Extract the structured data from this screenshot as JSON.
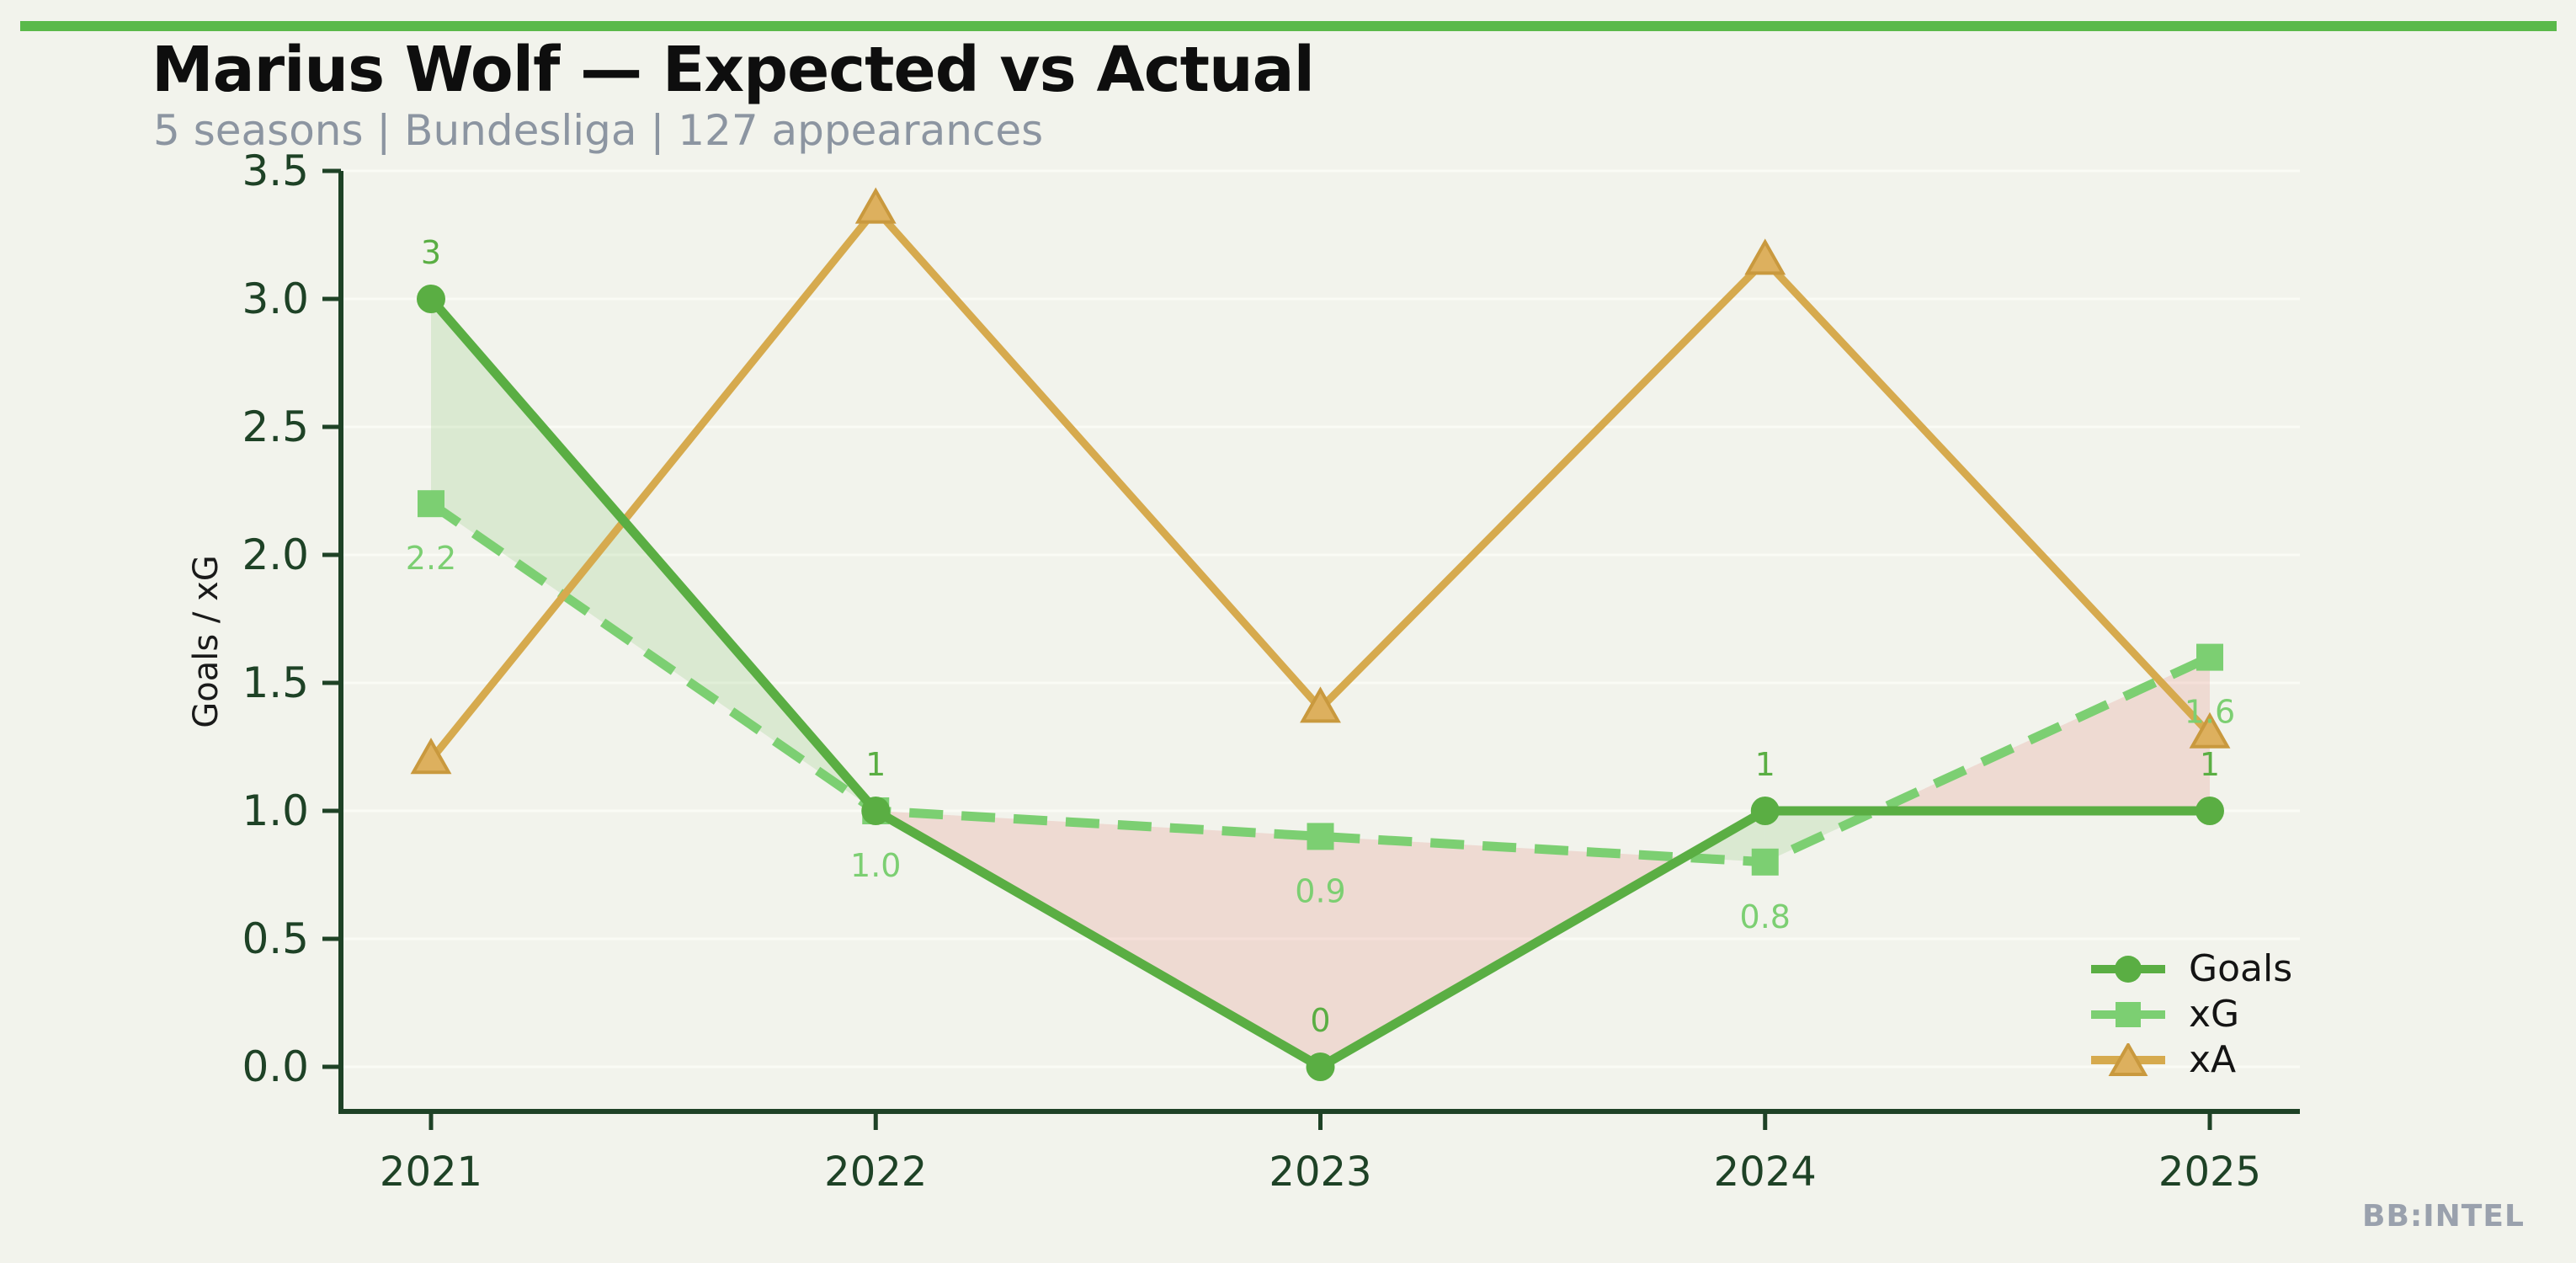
{
  "page": {
    "background": "#f2f3ec",
    "accent_bar_color": "#5ab94a",
    "watermark": "BB:INTEL",
    "watermark_color": "#9aa1ad"
  },
  "header": {
    "title": "Marius Wolf — Expected vs Actual",
    "subtitle": "5 seasons | Bundesliga | 127 appearances",
    "title_color": "#0e0e0e",
    "subtitle_color": "#8c95a1"
  },
  "chart_data": {
    "type": "line",
    "title": "Marius Wolf — Expected vs Actual",
    "x": [
      2021,
      2022,
      2023,
      2024,
      2025
    ],
    "xtick_labels": [
      "2021",
      "2022",
      "2023",
      "2024",
      "2025"
    ],
    "series": [
      {
        "name": "Goals",
        "values": [
          3,
          1,
          0,
          1,
          1
        ],
        "point_labels": [
          "3",
          "1",
          "0",
          "1",
          "1"
        ],
        "color": "#5aae43",
        "marker": "circle",
        "line_style": "solid"
      },
      {
        "name": "xG",
        "values": [
          2.2,
          1.0,
          0.9,
          0.8,
          1.6
        ],
        "point_labels": [
          "2.2",
          "1.0",
          "0.9",
          "0.8",
          "1.6"
        ],
        "color": "#7ccf72",
        "marker": "square",
        "line_style": "dashed"
      },
      {
        "name": "xA",
        "values": [
          1.2,
          3.35,
          1.4,
          3.15,
          1.3
        ],
        "point_labels": [],
        "color": "#d6aa4e",
        "marker": "triangle",
        "marker_fill": "#ddb05e",
        "marker_edge": "#c9993e",
        "line_style": "solid"
      }
    ],
    "xlabel": "",
    "ylabel": "Goals / xG",
    "ylim": [
      0,
      3.5
    ],
    "yticks": [
      "0.0",
      "0.5",
      "1.0",
      "1.5",
      "2.0",
      "2.5",
      "3.0",
      "3.5"
    ],
    "grid": true,
    "gridline_color": "#fafbf5",
    "axis_color": "#1e4226",
    "legend_position": "lower right",
    "legend_labels": [
      "Goals",
      "xG",
      "xA"
    ],
    "fill_between": {
      "description": "shading between Goals and xG",
      "above_color": "rgba(110,190,90,0.18)",
      "below_color": "rgba(222,105,95,0.18)"
    }
  }
}
